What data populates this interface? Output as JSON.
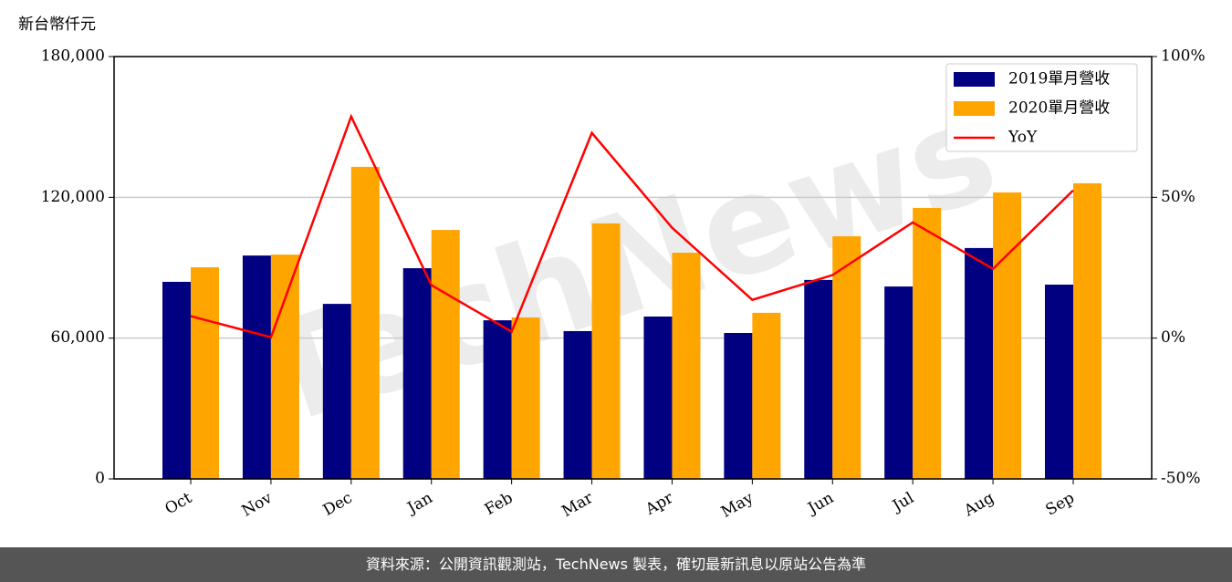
{
  "chart_data": {
    "type": "bar-line",
    "y_label": "新台幣仟元",
    "watermark": "TechNews",
    "categories": [
      "Oct",
      "Nov",
      "Dec",
      "Jan",
      "Feb",
      "Mar",
      "Apr",
      "May",
      "Jun",
      "Jul",
      "Aug",
      "Sep"
    ],
    "series": [
      {
        "name": "2019單月營收",
        "color": "#000080",
        "type": "bar",
        "values": [
          84000,
          95200,
          74600,
          89800,
          67600,
          63000,
          69200,
          62200,
          84800,
          82000,
          98400,
          82800
        ]
      },
      {
        "name": "2020單月營收",
        "color": "#ffa500",
        "type": "bar",
        "values": [
          90200,
          95600,
          133000,
          106100,
          68800,
          108900,
          96400,
          70800,
          103400,
          115500,
          122100,
          126000
        ]
      },
      {
        "name": "YoY",
        "color": "#ff0000",
        "type": "line",
        "axis": "y2",
        "values": [
          7.8,
          0.3,
          78.7,
          18.8,
          2.3,
          72.9,
          39.2,
          13.6,
          22.4,
          41.1,
          24.6,
          52.5
        ]
      }
    ],
    "ylim": [
      0,
      180000
    ],
    "yticks": [
      0,
      {
        "value": 60000,
        "label": "60,000"
      },
      {
        "value": 120000,
        "label": "120,000"
      },
      {
        "value": 180000,
        "label": "180,000"
      }
    ],
    "y2lim": [
      -50,
      100
    ],
    "y2ticks": [
      {
        "value": -50,
        "label": "-50%"
      },
      {
        "value": 0,
        "label": "0%"
      },
      {
        "value": 50,
        "label": "50%"
      },
      {
        "value": 100,
        "label": "100%"
      }
    ],
    "grid": true,
    "legend": "upper right"
  },
  "footer": "資料來源：公開資訊觀測站，TechNews 製表，確切最新訊息以原站公告為準"
}
